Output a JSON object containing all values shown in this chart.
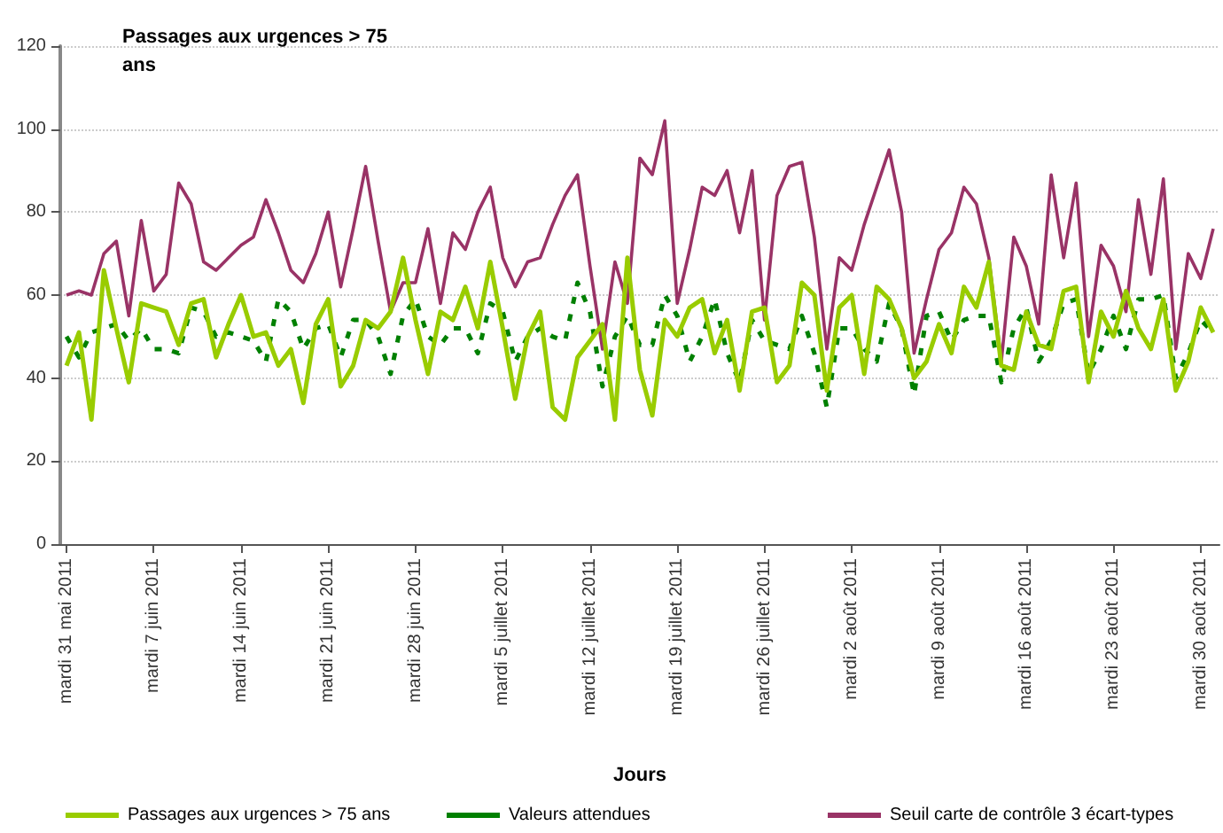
{
  "chart_data": {
    "type": "line",
    "title": "Passages aux urgences > 75 ans",
    "xlabel": "Jours",
    "categories": [
      "mardi 31 mai 2011",
      null,
      null,
      null,
      null,
      null,
      null,
      "mardi 7 juin 2011",
      null,
      null,
      null,
      null,
      null,
      null,
      "mardi 14 juin 2011",
      null,
      null,
      null,
      null,
      null,
      null,
      "mardi 21 juin 2011",
      null,
      null,
      null,
      null,
      null,
      null,
      "mardi 28 juin 2011",
      null,
      null,
      null,
      null,
      null,
      null,
      "mardi 5 juillet 2011",
      null,
      null,
      null,
      null,
      null,
      null,
      "mardi 12 juillet 2011",
      null,
      null,
      null,
      null,
      null,
      null,
      "mardi 19 juillet 2011",
      null,
      null,
      null,
      null,
      null,
      null,
      "mardi 26 juillet 2011",
      null,
      null,
      null,
      null,
      null,
      null,
      "mardi 2 août 2011",
      null,
      null,
      null,
      null,
      null,
      null,
      "mardi 9 août 2011",
      null,
      null,
      null,
      null,
      null,
      null,
      "mardi 16 août 2011",
      null,
      null,
      null,
      null,
      null,
      null,
      "mardi 23 août 2011",
      null,
      null,
      null,
      null,
      null,
      null,
      "mardi 30 août 2011",
      null
    ],
    "series": [
      {
        "name": "Passages aux urgences > 75 ans",
        "color": "#99cc00",
        "line_style": "solid",
        "values": [
          43,
          51,
          30,
          66,
          52,
          39,
          58,
          57,
          56,
          48,
          58,
          59,
          45,
          53,
          60,
          50,
          51,
          43,
          47,
          34,
          53,
          59,
          38,
          43,
          54,
          52,
          56,
          69,
          54,
          41,
          56,
          54,
          62,
          52,
          68,
          52,
          35,
          50,
          56,
          33,
          30,
          45,
          49,
          53,
          30,
          69,
          42,
          31,
          54,
          50,
          57,
          59,
          46,
          54,
          37,
          56,
          57,
          39,
          43,
          63,
          60,
          37,
          57,
          60,
          41,
          62,
          59,
          52,
          40,
          44,
          53,
          46,
          62,
          57,
          68,
          43,
          42,
          56,
          48,
          47,
          61,
          62,
          39,
          56,
          50,
          61,
          52,
          47,
          59,
          37,
          44,
          57,
          51
        ]
      },
      {
        "name": "Valeurs attendues",
        "color": "#008000",
        "line_style": "dashed",
        "values": [
          50,
          45,
          51,
          52,
          53,
          49,
          52,
          47,
          47,
          46,
          57,
          56,
          50,
          51,
          50,
          49,
          44,
          59,
          56,
          47,
          52,
          53,
          45,
          54,
          54,
          50,
          41,
          55,
          59,
          50,
          48,
          52,
          52,
          46,
          58,
          56,
          44,
          50,
          52,
          50,
          49,
          63,
          56,
          38,
          50,
          55,
          48,
          48,
          60,
          55,
          44,
          50,
          59,
          46,
          39,
          54,
          49,
          48,
          47,
          55,
          46,
          33,
          52,
          52,
          47,
          44,
          58,
          52,
          36,
          55,
          56,
          49,
          54,
          55,
          55,
          39,
          52,
          57,
          44,
          49,
          58,
          59,
          41,
          47,
          55,
          47,
          59,
          59,
          60,
          40,
          46,
          54,
          51
        ]
      },
      {
        "name": "Seuil carte de contrôle 3 écart-types",
        "color": "#993366",
        "line_style": "solid",
        "values": [
          60,
          61,
          60,
          70,
          73,
          55,
          78,
          61,
          65,
          87,
          82,
          68,
          66,
          69,
          72,
          74,
          83,
          75,
          66,
          63,
          70,
          80,
          62,
          76,
          91,
          73,
          56,
          63,
          63,
          76,
          58,
          75,
          71,
          80,
          86,
          69,
          62,
          68,
          69,
          77,
          84,
          89,
          67,
          47,
          68,
          58,
          93,
          89,
          102,
          58,
          71,
          86,
          84,
          90,
          75,
          90,
          54,
          84,
          91,
          92,
          74,
          47,
          69,
          66,
          77,
          86,
          95,
          80,
          46,
          59,
          71,
          75,
          86,
          82,
          69,
          44,
          74,
          67,
          53,
          89,
          69,
          87,
          50,
          72,
          67,
          56,
          83,
          65,
          88,
          47,
          70,
          64,
          76
        ]
      }
    ],
    "ylim": [
      0,
      120
    ],
    "yticks": [
      0,
      20,
      40,
      60,
      80,
      100,
      120
    ],
    "grid": "y",
    "legend": "bottom",
    "marker": "none"
  }
}
